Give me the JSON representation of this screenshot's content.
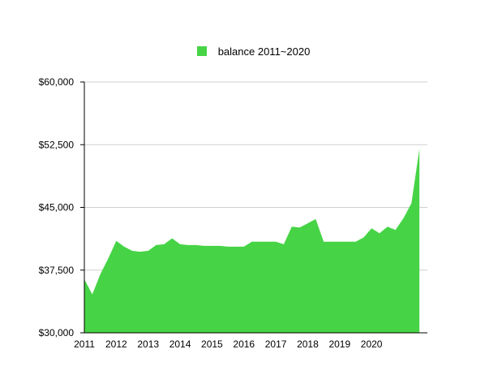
{
  "chart_data": {
    "type": "area",
    "title": "",
    "xlabel": "",
    "ylabel": "",
    "legend_position": "top-center",
    "grid": true,
    "ylim": [
      30000,
      60000
    ],
    "y_ticks": [
      {
        "value": 30000,
        "label": "$30,000"
      },
      {
        "value": 37500,
        "label": "$37,500"
      },
      {
        "value": 45000,
        "label": "$45,000"
      },
      {
        "value": 52500,
        "label": "$52,500"
      },
      {
        "value": 60000,
        "label": "$60,000"
      }
    ],
    "x_ticks": [
      {
        "value": 0,
        "label": "2011"
      },
      {
        "value": 4,
        "label": "2012"
      },
      {
        "value": 8,
        "label": "2013"
      },
      {
        "value": 12,
        "label": "2014"
      },
      {
        "value": 16,
        "label": "2015"
      },
      {
        "value": 20,
        "label": "2016"
      },
      {
        "value": 24,
        "label": "2017"
      },
      {
        "value": 28,
        "label": "2018"
      },
      {
        "value": 32,
        "label": "2019"
      },
      {
        "value": 36,
        "label": "2020"
      }
    ],
    "x_max": 43,
    "series": [
      {
        "name": "balance 2011~2020",
        "color": "#46d446",
        "values": [
          36400,
          34600,
          37000,
          38900,
          41000,
          40300,
          39800,
          39700,
          39800,
          40500,
          40600,
          41300,
          40600,
          40500,
          40500,
          40400,
          40400,
          40400,
          40300,
          40300,
          40300,
          40900,
          40900,
          40900,
          40900,
          40600,
          42700,
          42600,
          43100,
          43600,
          40900,
          40900,
          40900,
          40900,
          40900,
          41400,
          42500,
          41900,
          42700,
          42300,
          43700,
          45500,
          52000
        ]
      }
    ]
  }
}
